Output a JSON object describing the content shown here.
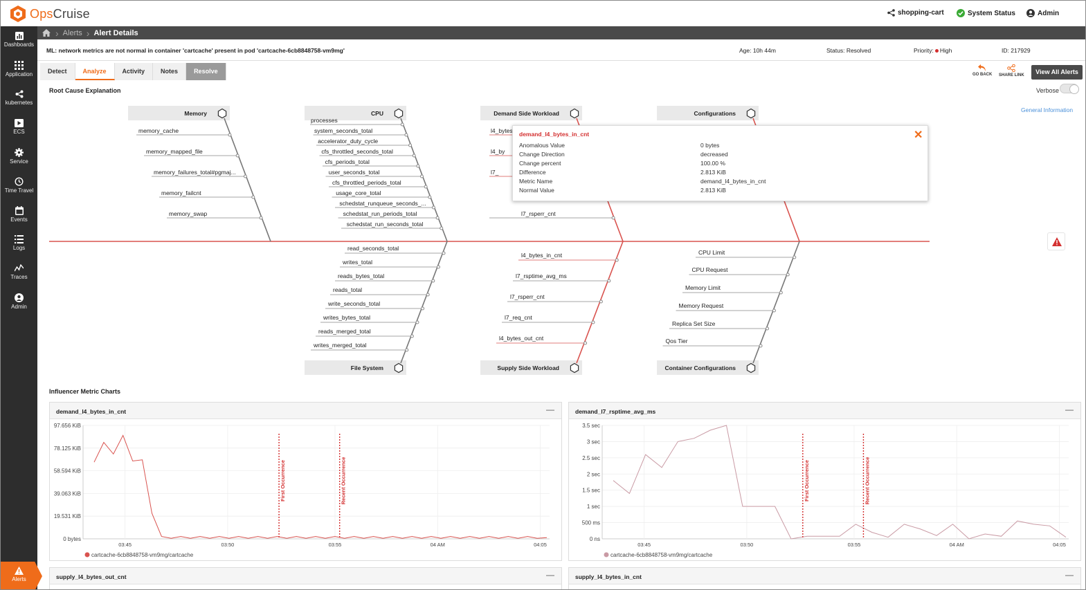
{
  "brand": {
    "name_prefix": "Ops",
    "name_suffix": "Cruise",
    "accent": "#ef6c1a"
  },
  "topbar": {
    "app": "shopping-cart",
    "system_status": "System Status",
    "user": "Admin"
  },
  "sidebar": {
    "items": [
      {
        "label": "Dashboards",
        "icon": "dashboard-icon"
      },
      {
        "label": "Application",
        "icon": "grid-icon"
      },
      {
        "label": "kubernetes",
        "icon": "share-icon"
      },
      {
        "label": "ECS",
        "icon": "play-icon"
      },
      {
        "label": "Service",
        "icon": "gear-icon"
      },
      {
        "label": "Time Travel",
        "icon": "clock-icon"
      },
      {
        "label": "Events",
        "icon": "calendar-icon"
      },
      {
        "label": "Logs",
        "icon": "list-icon"
      },
      {
        "label": "Traces",
        "icon": "trace-icon"
      },
      {
        "label": "Admin",
        "icon": "user-icon"
      }
    ],
    "active": {
      "label": "Alerts",
      "icon": "alert-icon"
    }
  },
  "breadcrumb": {
    "parent": "Alerts",
    "current": "Alert Details"
  },
  "alert": {
    "message": "ML: network metrics are not normal in container 'cartcache' present in pod 'cartcache-6cb8848758-vm9mg'",
    "age": "Age: 10h 44m",
    "status": "Status: Resolved",
    "priority_label": "Priority:",
    "priority": "High",
    "id": "ID: 217929"
  },
  "tabs": [
    "Detect",
    "Analyze",
    "Activity",
    "Notes",
    "Resolve"
  ],
  "actions": {
    "go_back": "GO BACK",
    "share_link": "SHARE LINK",
    "view_all": "View All Alerts"
  },
  "root_cause": {
    "title": "Root Cause Explanation",
    "verbose": "Verbose",
    "general_info": "General Information"
  },
  "fishbone": {
    "top_categories": [
      {
        "name": "Memory",
        "items": [
          "memory_cache",
          "memory_mapped_file",
          "memory_failures_total#pgmaj...",
          "memory_failcnt",
          "memory_swap"
        ]
      },
      {
        "name": "CPU",
        "items": [
          "processes",
          "system_seconds_total",
          "accelerator_duty_cycle",
          "cfs_throttled_seconds_total",
          "cfs_periods_total",
          "user_seconds_total",
          "cfs_throttled_periods_total",
          "usage_core_total",
          "schedstat_runqueue_seconds_...",
          "schedstat_run_periods_total",
          "schedstat_run_seconds_total"
        ]
      },
      {
        "name": "Demand Side Workload",
        "items": [
          "l4_bytes",
          "l4_by",
          "l7_",
          "l7_rsperr_cnt"
        ]
      },
      {
        "name": "Configurations",
        "items": []
      }
    ],
    "bottom_categories": [
      {
        "name": "File System",
        "items": [
          "read_seconds_total",
          "writes_total",
          "reads_bytes_total",
          "reads_total",
          "write_seconds_total",
          "writes_bytes_total",
          "reads_merged_total",
          "writes_merged_total"
        ]
      },
      {
        "name": "Supply Side Workload",
        "items": [
          "l4_bytes_in_cnt",
          "l7_rsptime_avg_ms",
          "l7_rsperr_cnt",
          "l7_req_cnt",
          "l4_bytes_out_cnt"
        ]
      },
      {
        "name": "Container Configurations",
        "items": [
          "CPU Limit",
          "CPU Request",
          "Memory Limit",
          "Memory Request",
          "Replica Set Size",
          "Qos Tier"
        ]
      }
    ]
  },
  "popup": {
    "title": "demand_l4_bytes_in_cnt",
    "rows": [
      {
        "k": "Anomalous Value",
        "v": "0 bytes"
      },
      {
        "k": "Change Direction",
        "v": "decreased"
      },
      {
        "k": "Change percent",
        "v": "100.00 %"
      },
      {
        "k": "Difference",
        "v": "2.813 KiB"
      },
      {
        "k": "Metric Name",
        "v": "demand_l4_bytes_in_cnt"
      },
      {
        "k": "Normal Value",
        "v": "2.813 KiB"
      }
    ]
  },
  "influencer": {
    "title": "Influencer Metric Charts"
  },
  "chart_data": [
    {
      "type": "line",
      "title": "demand_l4_bytes_in_cnt",
      "y_ticks": [
        "97.656 KiB",
        "78.125 KiB",
        "58.594 KiB",
        "39.063 KiB",
        "19.531 KiB",
        "0 bytes"
      ],
      "x_ticks": [
        "03:45",
        "03:50",
        "03:55",
        "04 AM",
        "04:05"
      ],
      "ylim_kib": [
        0,
        97.656
      ],
      "series": [
        {
          "name": "cartcache-6cb8848758-vm9mg/cartcache",
          "color": "#d9534f",
          "values_kib": [
            66,
            83,
            73,
            89,
            67,
            68,
            22,
            2,
            0.5,
            2,
            0.5,
            2,
            0.5,
            2,
            0.5,
            2,
            0.5,
            2,
            0.5,
            2,
            0.5,
            2,
            0.5,
            2,
            0.5,
            2,
            0.5,
            2,
            0.5,
            2,
            0.5,
            2,
            0.5,
            2,
            0.5,
            2,
            0.5,
            2,
            0.5,
            2,
            0.5,
            2,
            0.5,
            2,
            0.5,
            2,
            0.5,
            1
          ]
        }
      ],
      "markers": [
        {
          "label": "First Occurrence",
          "at": 0.42
        },
        {
          "label": "Recent Occurrence",
          "at": 0.55
        }
      ]
    },
    {
      "type": "line",
      "title": "demand_l7_rsptime_avg_ms",
      "y_ticks": [
        "3.5 sec",
        "3 sec",
        "2.5 sec",
        "2 sec",
        "1.5 sec",
        "1 sec",
        "500 ms",
        "0 ns"
      ],
      "x_ticks": [
        "03:45",
        "03:50",
        "03:55",
        "04 AM",
        "04:05"
      ],
      "ylim_sec": [
        0,
        3.5
      ],
      "series": [
        {
          "name": "cartcache-6cb8848758-vm9mg/cartcache",
          "color": "#c99aa4",
          "values_sec": [
            1.8,
            1.4,
            2.6,
            2.2,
            3.0,
            3.1,
            3.35,
            3.5,
            1.0,
            1.0,
            1.0,
            0.0,
            0.08,
            0.08,
            0.08,
            0.45,
            0.2,
            0.05,
            0.45,
            0.3,
            0.1,
            0.45,
            0.0,
            0.15,
            0.08,
            0.55,
            0.45,
            0.4,
            0.05
          ]
        }
      ],
      "markers": [
        {
          "label": "First Occurrence",
          "at": 0.43
        },
        {
          "label": "Recent Occurrence",
          "at": 0.56
        }
      ]
    }
  ],
  "more_panels": [
    "supply_l4_bytes_out_cnt",
    "supply_l4_bytes_in_cnt"
  ]
}
